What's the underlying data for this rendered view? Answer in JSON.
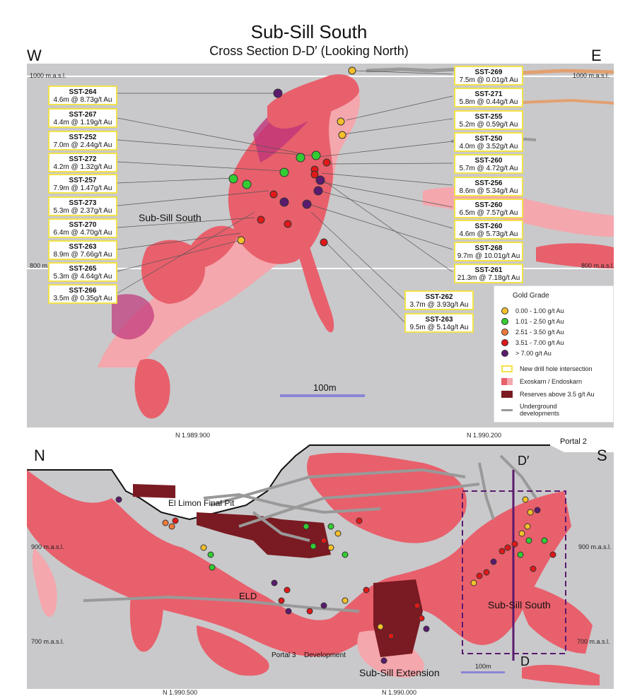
{
  "title": "Sub-Sill South",
  "subtitle": "Cross Section D-D′ (Looking North)",
  "top_panel": {
    "dir_left": "W",
    "dir_right": "E",
    "elev_1000_left": "1000 m.a.s.l.",
    "elev_1000_right": "1000 m.a.s.l.",
    "elev_800_left": "800 m.a.s.l.",
    "elev_800_right": "800 m.a.s.l.",
    "zone_label": "Sub-Sill South",
    "scale_label": "100m",
    "left_callouts": [
      {
        "id": "SST-264",
        "text": "4.6m @ 8.73g/t Au"
      },
      {
        "id": "SST-267",
        "text": "4.4m @ 1.19g/t Au"
      },
      {
        "id": "SST-252",
        "text": "7.0m @ 2.44g/t Au"
      },
      {
        "id": "SST-272",
        "text": "4.2m @ 1.32g/t Au"
      },
      {
        "id": "SST-257",
        "text": "7.9m @ 1.47g/t Au"
      },
      {
        "id": "SST-273",
        "text": "5.3m @ 2.37g/t Au"
      },
      {
        "id": "SST-270",
        "text": "6.4m @ 4.70g/t Au"
      },
      {
        "id": "SST-263",
        "text": "8.9m @ 7.66g/t Au"
      },
      {
        "id": "SST-265",
        "text": "5.3m @ 4.64g/t Au"
      },
      {
        "id": "SST-266",
        "text": "3.5m @ 0.35g/t Au"
      }
    ],
    "right_callouts": [
      {
        "id": "SST-269",
        "text": "7.5m @ 0.01g/t Au"
      },
      {
        "id": "SST-271",
        "text": "5.8m @ 0.44g/t Au"
      },
      {
        "id": "SST-255",
        "text": "5.2m @ 0.59g/t Au"
      },
      {
        "id": "SST-250",
        "text": "4.0m @ 3.52g/t Au"
      },
      {
        "id": "SST-260",
        "text": "5.7m @ 4.72g/t Au"
      },
      {
        "id": "SST-256",
        "text": "8.6m @ 5.34g/t Au"
      },
      {
        "id": "SST-260",
        "text": "6.5m @ 7.57g/t Au"
      },
      {
        "id": "SST-260",
        "text": "4.6m @ 5.73g/t Au"
      },
      {
        "id": "SST-268",
        "text": "9.7m @ 10.01g/t Au"
      },
      {
        "id": "SST-261",
        "text": "21.3m @ 7.18g/t Au"
      }
    ],
    "bottom_callouts": [
      {
        "id": "SST-262",
        "text": "3.7m @ 3.93g/t Au"
      },
      {
        "id": "SST-263",
        "text": "9.5m @ 5.14g/t Au"
      }
    ]
  },
  "legend": {
    "title": "Gold Grade",
    "grades": [
      {
        "label": "0.00 - 1.00 g/t Au",
        "color": "#f5c02a"
      },
      {
        "label": "1.01 - 2.50 g/t Au",
        "color": "#33cc33"
      },
      {
        "label": "2.51 - 3.50 g/t Au",
        "color": "#f07a3a"
      },
      {
        "label": "3.51 - 7.00 g/t Au",
        "color": "#e01818"
      },
      {
        "label": "> 7.00 g/t Au",
        "color": "#5a1a6e"
      }
    ],
    "new_hole": "New drill hole intersection",
    "skarn": "Exoskarn / Endoskarn",
    "reserves": "Reserves above 3.5 g/t Au",
    "underground": "Underground developments"
  },
  "bottom_panel": {
    "coord_top_left": "N 1.989.900",
    "coord_top_right": "N 1.990.200",
    "coord_bottom_left": "N 1.990.500",
    "coord_bottom_right": "N 1.990.000",
    "dir_left": "N",
    "dir_right": "S",
    "portal2": "Portal 2",
    "pit": "El Limon Final Pit",
    "eld": "ELD",
    "sub_sill_south": "Sub-Sill South",
    "sub_sill_ext": "Sub-Sill Extension",
    "portal3": "Portal 3",
    "development": "Development",
    "section_top": "D′",
    "section_bottom": "D",
    "elev_900_left": "900 m.a.s.l.",
    "elev_900_right": "900 m.a.s.l.",
    "elev_700_left": "700 m.a.s.l.",
    "elev_700_right": "700 m.a.s.l.",
    "scale_label": "100m"
  },
  "colors": {
    "skarn": "#e8606c",
    "skarn_light": "#f4a7ad",
    "purple_body": "#c0357a",
    "reserves": "#7a1a22",
    "background_grey": "#c9c9cb"
  }
}
